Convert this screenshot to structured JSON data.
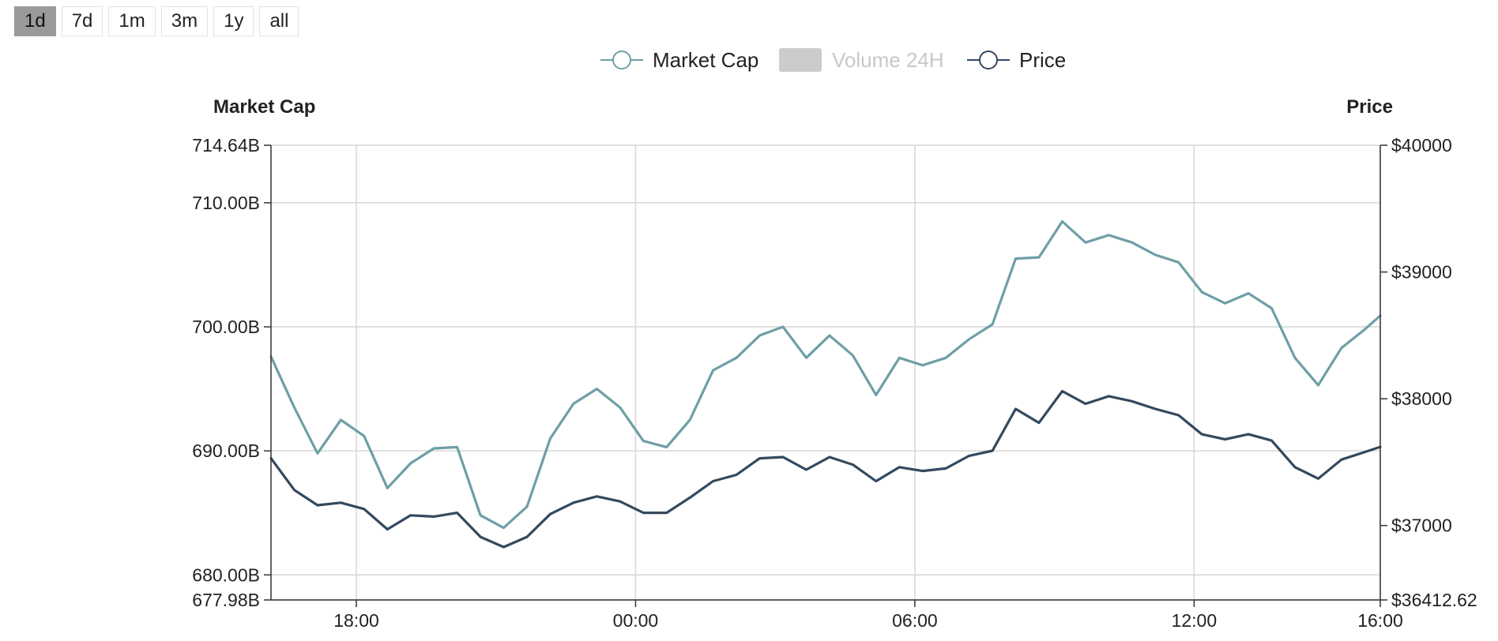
{
  "range_buttons": [
    {
      "label": "1d",
      "active": true
    },
    {
      "label": "7d",
      "active": false
    },
    {
      "label": "1m",
      "active": false
    },
    {
      "label": "3m",
      "active": false
    },
    {
      "label": "1y",
      "active": false
    },
    {
      "label": "all",
      "active": false
    }
  ],
  "colors": {
    "market_cap": "#6e9fa6",
    "price": "#34495e",
    "volume": "#cccccc",
    "volume_text": "#c8c8c8",
    "grid": "#d6d6d6",
    "axis": "#333333"
  },
  "chart_data": {
    "type": "line",
    "legend": [
      {
        "label": "Market Cap",
        "marker": "circle",
        "enabled": true
      },
      {
        "label": "Volume 24H",
        "marker": "rect",
        "enabled": false
      },
      {
        "label": "Price",
        "marker": "circle",
        "enabled": true
      }
    ],
    "left_axis_title": "Market Cap",
    "right_axis_title": "Price",
    "x_range": [
      "16:10",
      "16:00"
    ],
    "x_ticks": [
      "18:00",
      "00:00",
      "06:00",
      "12:00",
      "16:00"
    ],
    "left_ylim": [
      677.98,
      714.64
    ],
    "left_ticks": [
      "714.64B",
      "710.00B",
      "700.00B",
      "690.00B",
      "680.00B",
      "677.98B"
    ],
    "left_tick_values": [
      714.64,
      710,
      700,
      690,
      680,
      677.98
    ],
    "right_ylim": [
      36412.62,
      40000
    ],
    "right_ticks": [
      "$40000",
      "$39000",
      "$38000",
      "$37000",
      "$36412.62"
    ],
    "right_tick_values": [
      40000,
      39000,
      38000,
      37000,
      36412.62
    ],
    "grid": true,
    "series": [
      {
        "name": "Market Cap",
        "axis": "left",
        "x": [
          "16:10",
          "16:40",
          "17:10",
          "17:40",
          "18:10",
          "18:40",
          "19:10",
          "19:40",
          "20:10",
          "20:40",
          "21:10",
          "21:40",
          "22:10",
          "22:40",
          "23:10",
          "23:40",
          "00:10",
          "00:40",
          "01:10",
          "01:40",
          "02:10",
          "02:40",
          "03:10",
          "03:40",
          "04:10",
          "04:40",
          "05:10",
          "05:40",
          "06:10",
          "06:40",
          "07:10",
          "07:40",
          "08:10",
          "08:40",
          "09:10",
          "09:40",
          "10:10",
          "10:40",
          "11:10",
          "11:40",
          "12:10",
          "12:40",
          "13:10",
          "13:40",
          "14:10",
          "14:40",
          "15:10",
          "15:40",
          "16:00"
        ],
        "values": [
          697.6,
          693.5,
          689.8,
          692.5,
          691.2,
          687.0,
          689.0,
          690.2,
          690.3,
          684.8,
          683.8,
          685.5,
          691.0,
          693.8,
          695.0,
          693.5,
          690.8,
          690.3,
          692.5,
          696.5,
          697.5,
          699.3,
          700.0,
          697.5,
          699.3,
          697.7,
          694.5,
          697.5,
          696.9,
          697.5,
          699.0,
          700.2,
          705.5,
          705.6,
          708.5,
          706.8,
          707.4,
          706.8,
          705.8,
          705.2,
          702.8,
          701.9,
          702.7,
          701.5,
          697.5,
          695.3,
          698.3,
          699.8,
          700.9
        ]
      },
      {
        "name": "Price",
        "axis": "right",
        "x": [
          "16:10",
          "16:40",
          "17:10",
          "17:40",
          "18:10",
          "18:40",
          "19:10",
          "19:40",
          "20:10",
          "20:40",
          "21:10",
          "21:40",
          "22:10",
          "22:40",
          "23:10",
          "23:40",
          "00:10",
          "00:40",
          "01:10",
          "01:40",
          "02:10",
          "02:40",
          "03:10",
          "03:40",
          "04:10",
          "04:40",
          "05:10",
          "05:40",
          "06:10",
          "06:40",
          "07:10",
          "07:40",
          "08:10",
          "08:40",
          "09:10",
          "09:40",
          "10:10",
          "10:40",
          "11:10",
          "11:40",
          "12:10",
          "12:40",
          "13:10",
          "13:40",
          "14:10",
          "14:40",
          "15:10",
          "15:40",
          "16:00"
        ],
        "values": [
          37530,
          37280,
          37160,
          37180,
          37130,
          36970,
          37080,
          37070,
          37100,
          36910,
          36830,
          36910,
          37090,
          37180,
          37230,
          37190,
          37100,
          37100,
          37220,
          37350,
          37400,
          37530,
          37540,
          37440,
          37540,
          37480,
          37350,
          37460,
          37430,
          37450,
          37550,
          37590,
          37920,
          37810,
          38060,
          37960,
          38020,
          37980,
          37920,
          37870,
          37720,
          37680,
          37720,
          37670,
          37460,
          37370,
          37520,
          37580,
          37620
        ]
      }
    ]
  }
}
